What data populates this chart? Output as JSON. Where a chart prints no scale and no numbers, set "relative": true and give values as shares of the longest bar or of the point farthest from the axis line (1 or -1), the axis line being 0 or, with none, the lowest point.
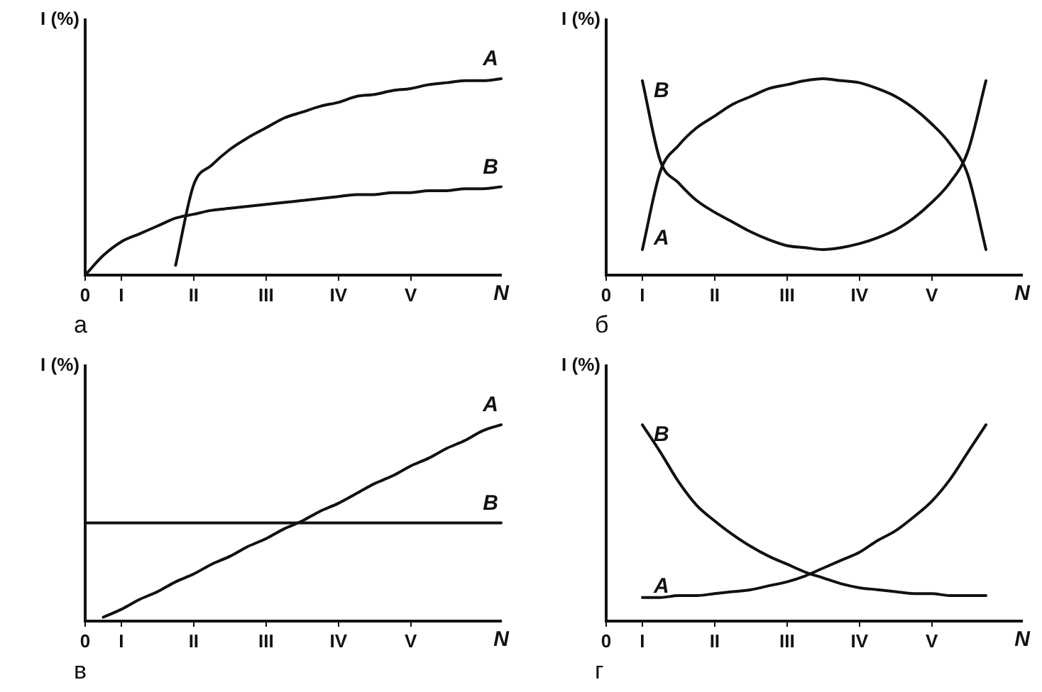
{
  "chart_data": [
    {
      "type": "line",
      "title": "а",
      "xlabel": "N",
      "ylabel": "I (%)",
      "relative": true,
      "marker": "none",
      "line_style": "solid",
      "categories": [
        "0",
        null,
        "I",
        null,
        null,
        null,
        "II",
        null,
        null,
        null,
        "III",
        null,
        null,
        null,
        "IV",
        null,
        null,
        null,
        "V",
        null,
        null,
        null,
        null,
        null
      ],
      "series": [
        {
          "name": "A",
          "color": "#111111",
          "values": [
            null,
            null,
            null,
            null,
            null,
            0.05,
            0.46,
            0.56,
            0.64,
            0.7,
            0.75,
            0.8,
            0.83,
            0.86,
            0.88,
            0.91,
            0.92,
            0.94,
            0.95,
            0.97,
            0.98,
            0.99,
            0.99,
            1.0
          ]
        },
        {
          "name": "B",
          "color": "#111111",
          "values": [
            0,
            0.1,
            0.17,
            0.21,
            0.25,
            0.29,
            0.31,
            0.33,
            0.34,
            0.35,
            0.36,
            0.37,
            0.38,
            0.39,
            0.4,
            0.41,
            0.41,
            0.42,
            0.42,
            0.43,
            0.43,
            0.44,
            0.44,
            0.45
          ]
        }
      ]
    },
    {
      "type": "line",
      "title": "б",
      "xlabel": "N",
      "ylabel": "I (%)",
      "relative": true,
      "marker": "none",
      "line_style": "solid",
      "categories": [
        "0",
        null,
        "I",
        null,
        null,
        null,
        "II",
        null,
        null,
        null,
        "III",
        null,
        null,
        null,
        "IV",
        null,
        null,
        null,
        "V",
        null,
        null,
        null,
        null,
        null
      ],
      "series": [
        {
          "name": "A",
          "color": "#111111",
          "values": [
            null,
            null,
            0.13,
            0.53,
            0.66,
            0.75,
            0.81,
            0.87,
            0.91,
            0.95,
            0.97,
            0.99,
            1.0,
            0.99,
            0.98,
            0.95,
            0.91,
            0.85,
            0.77,
            0.67,
            0.51,
            0.13,
            null,
            null
          ]
        },
        {
          "name": "B",
          "color": "#111111",
          "values": [
            null,
            null,
            0.99,
            0.58,
            0.47,
            0.38,
            0.32,
            0.27,
            0.22,
            0.18,
            0.15,
            0.14,
            0.13,
            0.14,
            0.16,
            0.19,
            0.23,
            0.29,
            0.37,
            0.47,
            0.63,
            0.99,
            null,
            null
          ]
        }
      ]
    },
    {
      "type": "line",
      "title": "в",
      "xlabel": "N",
      "ylabel": "I (%)",
      "relative": true,
      "marker": "none",
      "line_style": "solid",
      "categories": [
        "0",
        null,
        "I",
        null,
        null,
        null,
        "II",
        null,
        null,
        null,
        "III",
        null,
        null,
        null,
        "IV",
        null,
        null,
        null,
        "V",
        null,
        null,
        null,
        null,
        null
      ],
      "series": [
        {
          "name": "A",
          "color": "#111111",
          "values": [
            null,
            0.02,
            0.06,
            0.11,
            0.15,
            0.2,
            0.24,
            0.29,
            0.33,
            0.38,
            0.42,
            0.47,
            0.51,
            0.56,
            0.6,
            0.65,
            0.7,
            0.74,
            0.79,
            0.83,
            0.88,
            0.92,
            0.97,
            1.0
          ]
        },
        {
          "name": "B",
          "color": "#111111",
          "values": [
            0.5,
            0.5,
            0.5,
            0.5,
            0.5,
            0.5,
            0.5,
            0.5,
            0.5,
            0.5,
            0.5,
            0.5,
            0.5,
            0.5,
            0.5,
            0.5,
            0.5,
            0.5,
            0.5,
            0.5,
            0.5,
            0.5,
            0.5,
            0.5
          ]
        }
      ]
    },
    {
      "type": "line",
      "title": "г",
      "xlabel": "N",
      "ylabel": "I (%)",
      "relative": true,
      "marker": "none",
      "line_style": "solid",
      "categories": [
        "0",
        null,
        "I",
        null,
        null,
        null,
        "II",
        null,
        null,
        null,
        "III",
        null,
        null,
        null,
        "IV",
        null,
        null,
        null,
        "V",
        null,
        null,
        null,
        null,
        null
      ],
      "series": [
        {
          "name": "A",
          "color": "#111111",
          "values": [
            null,
            null,
            0.12,
            0.12,
            0.13,
            0.13,
            0.14,
            0.15,
            0.16,
            0.18,
            0.2,
            0.23,
            0.27,
            0.31,
            0.35,
            0.41,
            0.46,
            0.53,
            0.61,
            0.72,
            0.86,
            1.0,
            null,
            null
          ]
        },
        {
          "name": "B",
          "color": "#111111",
          "values": [
            null,
            null,
            1.0,
            0.86,
            0.71,
            0.59,
            0.51,
            0.44,
            0.38,
            0.33,
            0.29,
            0.25,
            0.22,
            0.19,
            0.17,
            0.16,
            0.15,
            0.14,
            0.14,
            0.13,
            0.13,
            0.13,
            null,
            null
          ]
        }
      ]
    }
  ]
}
